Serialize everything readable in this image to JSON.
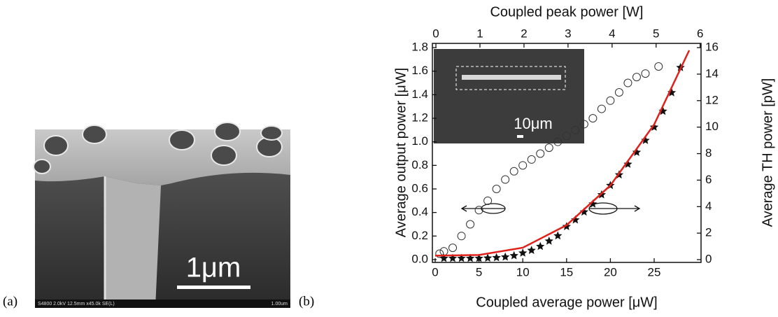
{
  "panel_labels": [
    "(a)",
    "(b)"
  ],
  "sem_image": {
    "scale_bar": "1μm",
    "info_bar": "S4800 2.0kV 12.5mm x45.0k SE(L)",
    "info_scale": "1.00um"
  },
  "chart_data": {
    "type": "scatter",
    "xlabel": "Coupled average power [μW]",
    "ylabel": "Average output power [μW]",
    "y2label": "Average TH power [pW]",
    "x2label": "Coupled peak power [W]",
    "inset_label": "10μm",
    "xlim": [
      -0.32,
      30.35
    ],
    "xticks": [
      0,
      5,
      10,
      15,
      20,
      25
    ],
    "x2lim": [
      -0.08,
      6.02
    ],
    "x2ticks": [
      0,
      1,
      2,
      3,
      4,
      5,
      6
    ],
    "ylim": [
      -0.024,
      1.836
    ],
    "yticks": [
      {
        "value": 0,
        "label": "0.0"
      },
      0.2,
      0.4,
      0.6,
      0.8,
      {
        "value": 1,
        "label": "1.0"
      },
      1.2,
      1.4,
      1.6,
      1.8
    ],
    "y2lim": [
      -0.21,
      16.32
    ],
    "y2ticks": [
      0,
      2,
      4,
      6,
      8,
      10,
      12,
      14,
      16
    ],
    "series": [
      {
        "marker": "circle",
        "color": "#333333",
        "axis": "y",
        "x": [
          0.5,
          1,
          2,
          3,
          4,
          5,
          6,
          7,
          8,
          9,
          10,
          11,
          12,
          13,
          14,
          15,
          16,
          17,
          18,
          19,
          20,
          21,
          22,
          23,
          24,
          25.5
        ],
        "values": [
          0.05,
          0.07,
          0.1,
          0.2,
          0.3,
          0.42,
          0.5,
          0.6,
          0.68,
          0.75,
          0.8,
          0.85,
          0.9,
          0.95,
          1.0,
          1.05,
          1.1,
          1.15,
          1.2,
          1.28,
          1.35,
          1.42,
          1.5,
          1.55,
          1.58,
          1.64
        ]
      },
      {
        "marker": "star",
        "color": "#111111",
        "axis": "y2",
        "x": [
          1,
          2,
          3,
          4,
          5,
          6,
          7,
          8,
          9,
          10,
          11,
          12,
          13,
          14,
          15,
          16,
          17,
          18,
          19,
          20,
          21,
          22,
          23,
          24,
          25,
          26,
          27,
          28
        ],
        "values": [
          0.1,
          0.1,
          0.1,
          0.1,
          0.1,
          0.12,
          0.15,
          0.2,
          0.3,
          0.5,
          0.7,
          1.0,
          1.4,
          1.8,
          2.5,
          3.0,
          3.6,
          4.2,
          4.9,
          5.6,
          6.4,
          7.2,
          8.1,
          9.0,
          10.0,
          11.2,
          12.6,
          14.5
        ]
      },
      {
        "marker": "line",
        "color": "#e0201b",
        "axis": "y2",
        "x": [
          0,
          5,
          10,
          15,
          20,
          25,
          29
        ],
        "values": [
          0.3,
          0.35,
          0.9,
          2.6,
          5.6,
          10.2,
          15.8
        ]
      }
    ]
  }
}
